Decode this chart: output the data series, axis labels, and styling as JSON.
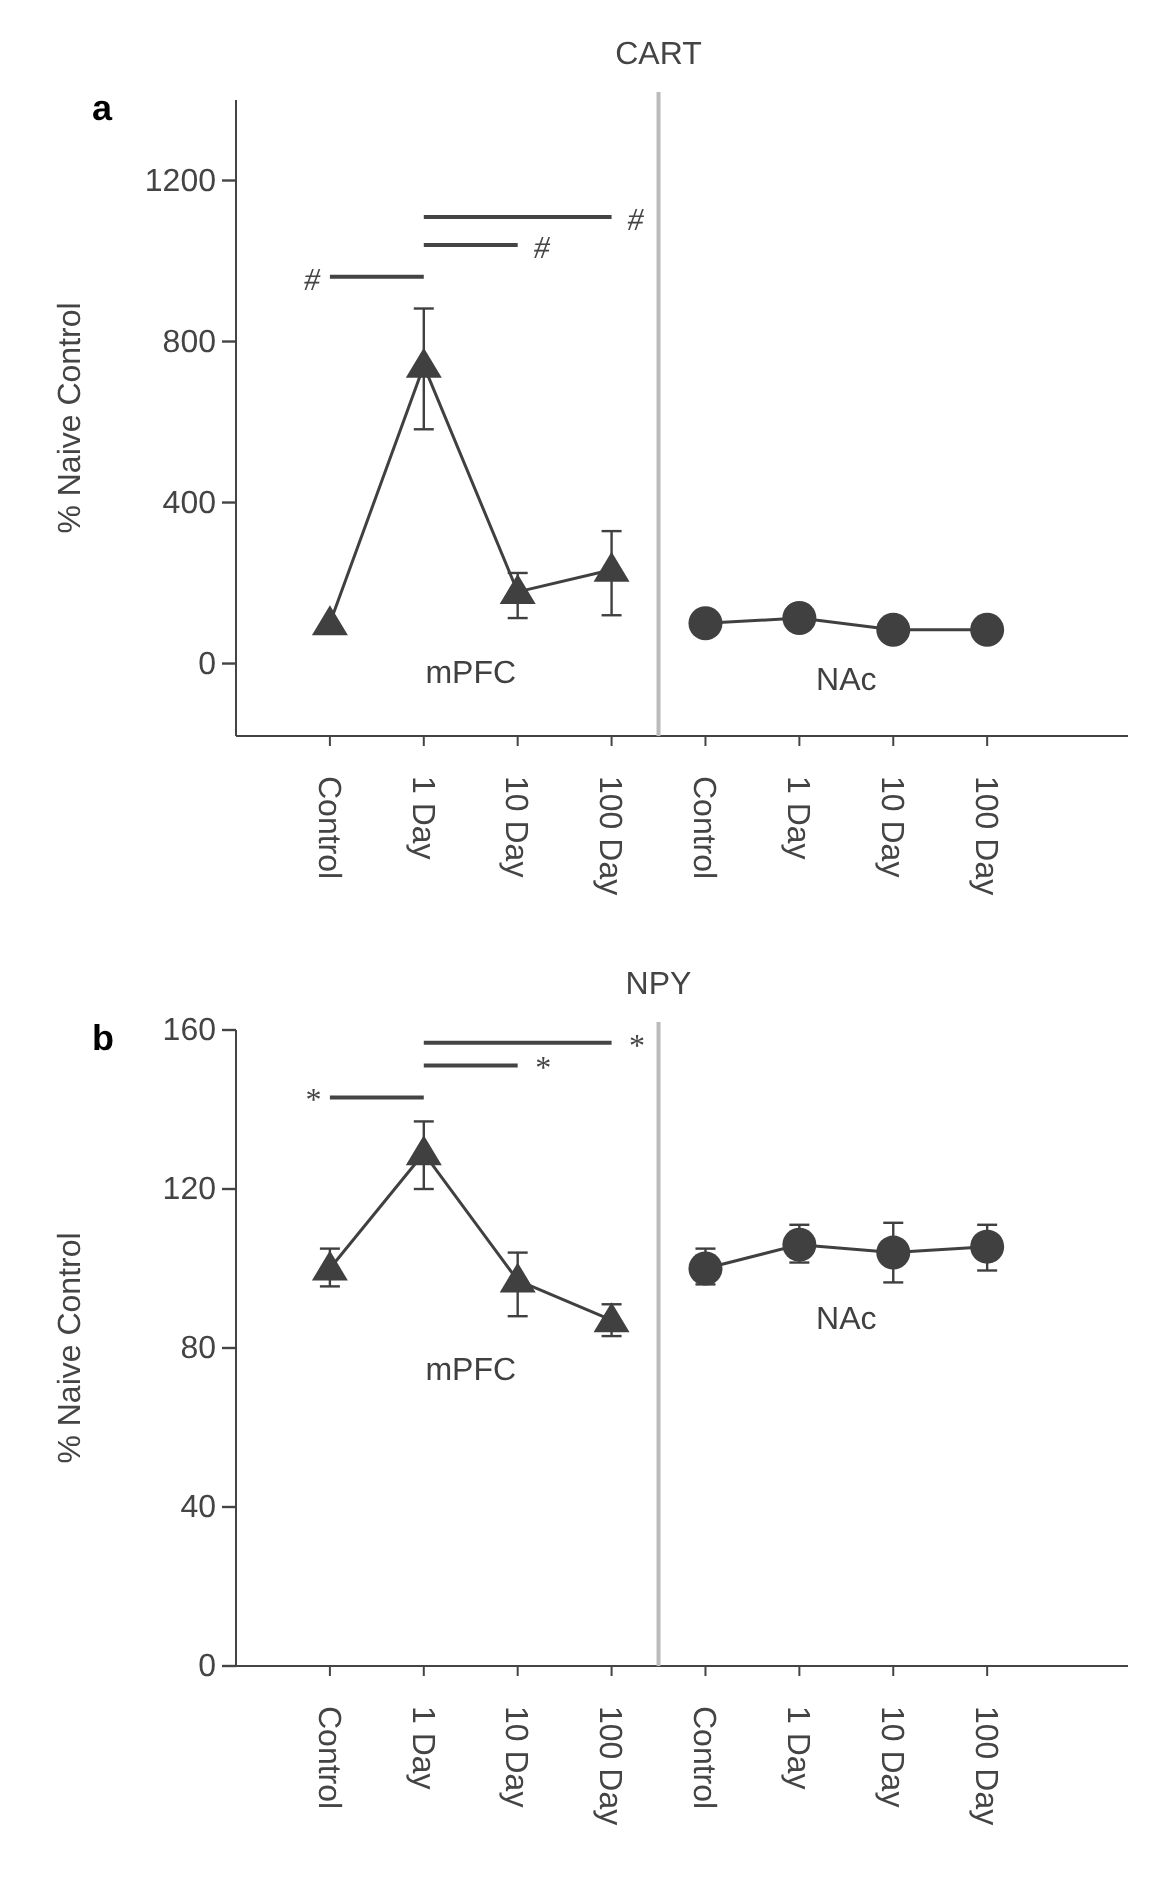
{
  "chart_data": [
    {
      "type": "line",
      "title": "CART",
      "ylabel": "% Naive Control",
      "annotations": [
        "a",
        "#",
        "#",
        "#"
      ],
      "categories": [
        "Control",
        "1 Day",
        "10 Day",
        "100 Day",
        "Control",
        "1 Day",
        "10 Day",
        "100 Day"
      ],
      "ylim": [
        -180,
        1400
      ],
      "yticks": [
        0,
        400,
        800,
        1200
      ],
      "grid": false,
      "legend": false,
      "line_style": "solid",
      "series": [
        {
          "name": "mPFC",
          "color": "#404040",
          "marker": "triangle",
          "values": [
            100,
            740,
            178,
            233,
            null,
            null,
            null,
            null
          ],
          "errors": [
            null,
            [
              582,
              882
            ],
            [
              113,
              225
            ],
            [
              120,
              329
            ],
            null,
            null,
            null,
            null
          ]
        },
        {
          "name": "NAc",
          "color": "#404040",
          "marker": "circle",
          "values": [
            null,
            null,
            null,
            null,
            100,
            113,
            84,
            84
          ]
        }
      ]
    },
    {
      "type": "line",
      "title": "NPY",
      "ylabel": "% Naive Control",
      "annotations": [
        "b",
        "*",
        "*",
        "*"
      ],
      "categories": [
        "Control",
        "1 Day",
        "10 Day",
        "100 Day",
        "Control",
        "1 Day",
        "10 Day",
        "100 Day"
      ],
      "ylim": [
        0,
        160
      ],
      "yticks": [
        0,
        40,
        80,
        120,
        160
      ],
      "grid": false,
      "legend": false,
      "line_style": "solid",
      "series": [
        {
          "name": "mPFC",
          "color": "#404040",
          "marker": "triangle",
          "values": [
            100,
            129,
            97,
            87,
            null,
            null,
            null,
            null
          ],
          "errors": [
            [
              95.5,
              105
            ],
            [
              120,
              137
            ],
            [
              88,
              104
            ],
            [
              83,
              91
            ],
            null,
            null,
            null,
            null
          ]
        },
        {
          "name": "NAc",
          "color": "#404040",
          "marker": "circle",
          "values": [
            null,
            null,
            null,
            null,
            100,
            106,
            104,
            105.5
          ],
          "errors": [
            null,
            null,
            null,
            null,
            [
              96,
              105
            ],
            [
              101.5,
              111
            ],
            [
              96.5,
              111.5
            ],
            [
              99.5,
              111
            ]
          ]
        }
      ]
    }
  ]
}
